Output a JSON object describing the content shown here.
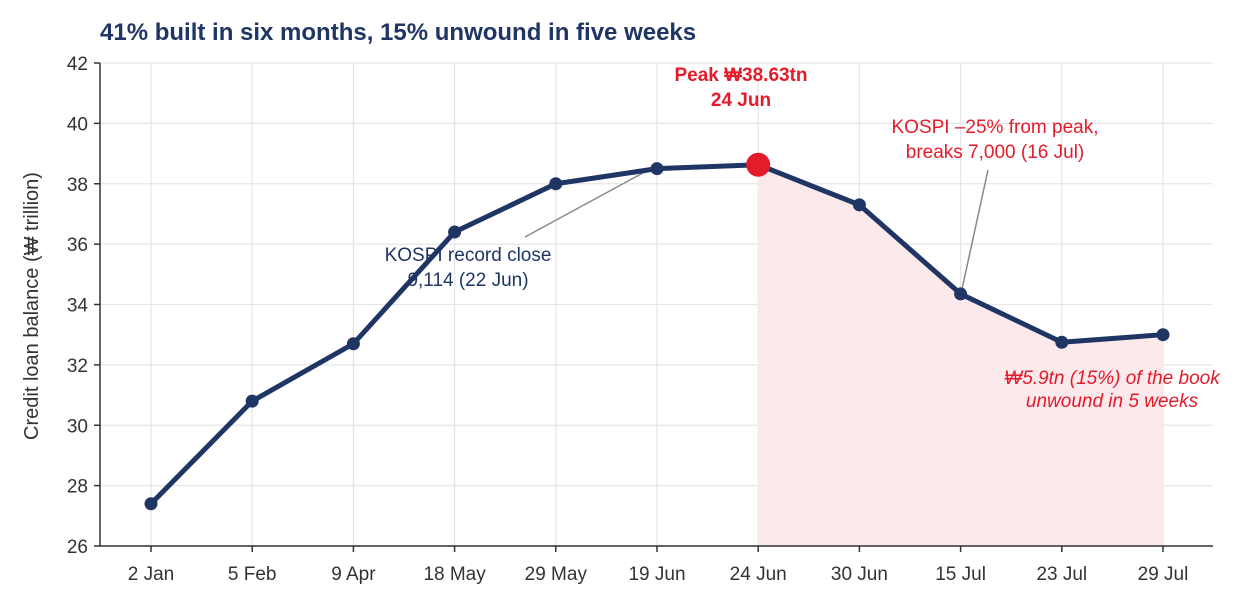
{
  "chart_data": {
    "type": "line",
    "title": "41% built in six months, 15% unwound in five weeks",
    "xlabel": "",
    "ylabel": "Credit loan balance (₩ trillion)",
    "ylim": [
      26,
      42
    ],
    "yticks": [
      "26",
      "28",
      "30",
      "32",
      "34",
      "36",
      "38",
      "40",
      "42"
    ],
    "grid": true,
    "categories": [
      "2 Jan",
      "5 Feb",
      "9 Apr",
      "18 May",
      "29 May",
      "19 Jun",
      "24 Jun",
      "30 Jun",
      "15 Jul",
      "23 Jul",
      "29 Jul"
    ],
    "series": [
      {
        "values": [
          27.4,
          30.8,
          32.7,
          36.4,
          38.0,
          38.5,
          38.63,
          37.3,
          34.35,
          32.75,
          33.0
        ]
      }
    ],
    "shaded_from_category": "24 Jun",
    "highlight_category": "24 Jun",
    "annotations": {
      "peak": {
        "line1": "Peak ₩38.63tn",
        "line2": "24 Jun"
      },
      "kospi_record": {
        "line1": "KOSPI record close",
        "line2": "9,114 (22 Jun)"
      },
      "kospi_drop": {
        "line1": "KOSPI –25% from peak,",
        "line2": "breaks 7,000 (16 Jul)"
      },
      "unwound": {
        "line1": "₩5.9tn (15%) of the book",
        "line2": "unwound in 5 weeks"
      }
    },
    "colors": {
      "line": "#1f3564",
      "highlight": "#e41b2a",
      "shade": "#fbe9ec",
      "grid": "#e6e6e6"
    }
  }
}
